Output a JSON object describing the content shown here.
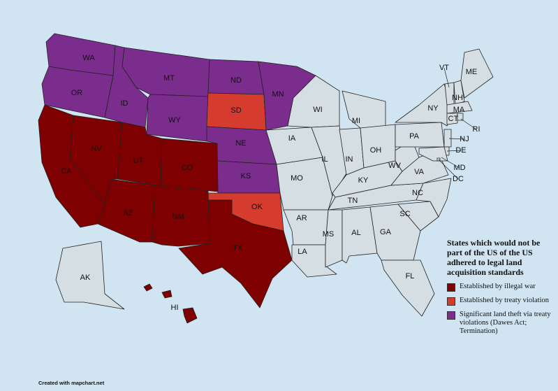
{
  "map": {
    "title": "States which would not be part of the US of the US adhered to legal land acquisition standards",
    "legend": [
      {
        "label": "Established by illegal war",
        "color": "#7f0000"
      },
      {
        "label": "Established by treaty violation",
        "color": "#d63c2d"
      },
      {
        "label": "Significant land theft via treaty violations (Dawes Act; Termination)",
        "color": "#7a2d8c"
      }
    ],
    "states": [
      {
        "label": "WA",
        "color": "#7a2d8c"
      },
      {
        "label": "OR",
        "color": "#7a2d8c"
      },
      {
        "label": "ID",
        "color": "#7a2d8c"
      },
      {
        "label": "MT",
        "color": "#7a2d8c"
      },
      {
        "label": "WY",
        "color": "#7a2d8c"
      },
      {
        "label": "ND",
        "color": "#7a2d8c"
      },
      {
        "label": "SD",
        "color": "#d63c2d"
      },
      {
        "label": "NE",
        "color": "#7a2d8c"
      },
      {
        "label": "KS",
        "color": "#7a2d8c"
      },
      {
        "label": "OK",
        "color": "#d63c2d"
      },
      {
        "label": "TX",
        "color": "#7f0000"
      },
      {
        "label": "NM",
        "color": "#7f0000"
      },
      {
        "label": "CO",
        "color": "#7f0000"
      },
      {
        "label": "UT",
        "color": "#7f0000"
      },
      {
        "label": "AZ",
        "color": "#7f0000"
      },
      {
        "label": "NV",
        "color": "#7f0000"
      },
      {
        "label": "CA",
        "color": "#7f0000"
      },
      {
        "label": "MN",
        "color": "#7a2d8c"
      },
      {
        "label": "IA",
        "color": "#d5dee2"
      },
      {
        "label": "MO",
        "color": "#d5dee2"
      },
      {
        "label": "AR",
        "color": "#d5dee2"
      },
      {
        "label": "LA",
        "color": "#d5dee2"
      },
      {
        "label": "WI",
        "color": "#d5dee2"
      },
      {
        "label": "IL",
        "color": "#d5dee2"
      },
      {
        "label": "IN",
        "color": "#d5dee2"
      },
      {
        "label": "MI",
        "color": "#d5dee2"
      },
      {
        "label": "OH",
        "color": "#d5dee2"
      },
      {
        "label": "KY",
        "color": "#d5dee2"
      },
      {
        "label": "TN",
        "color": "#d5dee2"
      },
      {
        "label": "MS",
        "color": "#d5dee2"
      },
      {
        "label": "AL",
        "color": "#d5dee2"
      },
      {
        "label": "GA",
        "color": "#d5dee2"
      },
      {
        "label": "FL",
        "color": "#d5dee2"
      },
      {
        "label": "SC",
        "color": "#d5dee2"
      },
      {
        "label": "NC",
        "color": "#d5dee2"
      },
      {
        "label": "VA",
        "color": "#d5dee2"
      },
      {
        "label": "WV",
        "color": "#d5dee2"
      },
      {
        "label": "PA",
        "color": "#d5dee2"
      },
      {
        "label": "NY",
        "color": "#d5dee2"
      },
      {
        "label": "VT",
        "color": "#d5dee2"
      },
      {
        "label": "NH",
        "color": "#d5dee2"
      },
      {
        "label": "ME",
        "color": "#d5dee2"
      },
      {
        "label": "MA",
        "color": "#d5dee2"
      },
      {
        "label": "CT",
        "color": "#d5dee2"
      },
      {
        "label": "RI",
        "color": "#d5dee2"
      },
      {
        "label": "NJ",
        "color": "#d5dee2"
      },
      {
        "label": "DE",
        "color": "#d5dee2"
      },
      {
        "label": "MD",
        "color": "#d5dee2"
      },
      {
        "label": "DC",
        "color": "#d5dee2"
      },
      {
        "label": "AK",
        "color": "#d5dee2"
      },
      {
        "label": "HI",
        "color": "#7f0000"
      }
    ],
    "credit": "Created with mapchart.net"
  }
}
